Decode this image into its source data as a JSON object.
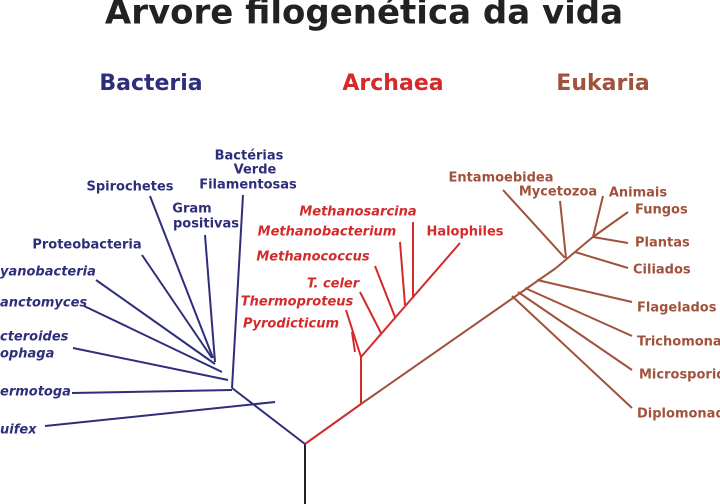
{
  "title": "Árvore filogenética da vida",
  "domains": [
    "Bacteria",
    "Archaea",
    "Eukaria"
  ],
  "bacteria": [
    "Bactérias",
    "Verde",
    "Filamentosas",
    "Spirochetes",
    "Gram",
    "positivas",
    "Proteobacteria",
    "yanobacteria",
    "anctomyces",
    "cteroides",
    "ophaga",
    "ermotoga",
    "uifex"
  ],
  "archaea": [
    "Methanosarcina",
    "Methanobacterium",
    "Methanococcus",
    "T. celer",
    "Thermoproteus",
    "Pyrodicticum",
    "Halophiles"
  ],
  "eukaria": [
    "Entamoebidea",
    "Mycetozoa",
    "Animais",
    "Fungos",
    "Plantas",
    "Ciliados",
    "Flagelados",
    "Trichomona",
    "Microsporid",
    "Diplomonad"
  ]
}
